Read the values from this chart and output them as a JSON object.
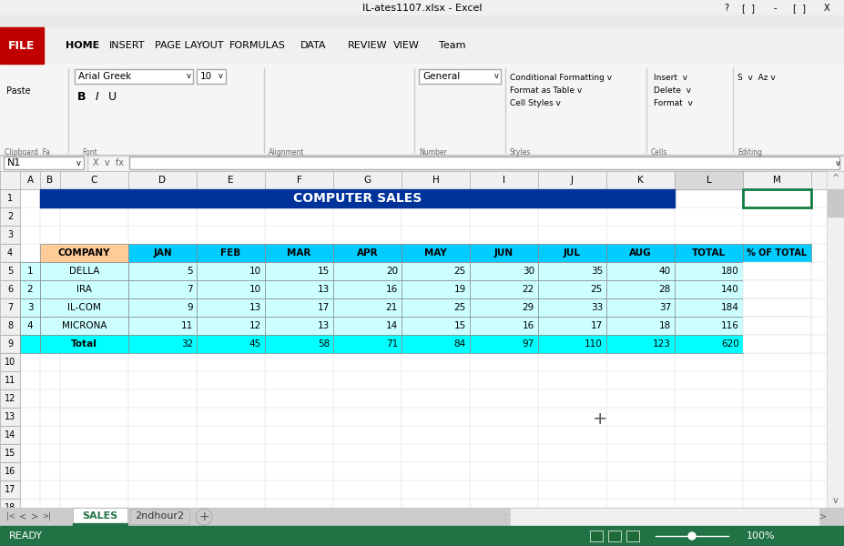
{
  "title": "IL-ates1107.xlsx - Excel",
  "sheet_title": "COMPUTER SALES",
  "tab_active": "SALES",
  "tab_inactive": "2ndhour2",
  "col_letters": [
    "A",
    "B",
    "C",
    "D",
    "E",
    "F",
    "G",
    "H",
    "I",
    "J",
    "K",
    "L",
    "M"
  ],
  "data_rows": [
    [
      "1",
      "DELLA",
      5,
      10,
      15,
      20,
      25,
      30,
      35,
      40,
      180
    ],
    [
      "2",
      "IRA",
      7,
      10,
      13,
      16,
      19,
      22,
      25,
      28,
      140
    ],
    [
      "3",
      "IL-COM",
      9,
      13,
      17,
      21,
      25,
      29,
      33,
      37,
      184
    ],
    [
      "4",
      "MICRONA",
      11,
      12,
      13,
      14,
      15,
      16,
      17,
      18,
      116
    ],
    [
      "",
      "Total",
      32,
      45,
      58,
      71,
      84,
      97,
      110,
      123,
      620
    ]
  ],
  "colors": {
    "header_bg": "#003399",
    "header_text": "#FFFFFF",
    "company_header_bg": "#FFCC99",
    "data_header_bg": "#00CCFF",
    "data_bg": "#CCFFFF",
    "total_bg": "#00FFFF",
    "row_num_bg": "#F0F0F0",
    "ribbon_bg": "#F5F5F5",
    "tab_active_color": "#217346",
    "status_bar_bg": "#217346",
    "file_btn_bg": "#C00000"
  }
}
